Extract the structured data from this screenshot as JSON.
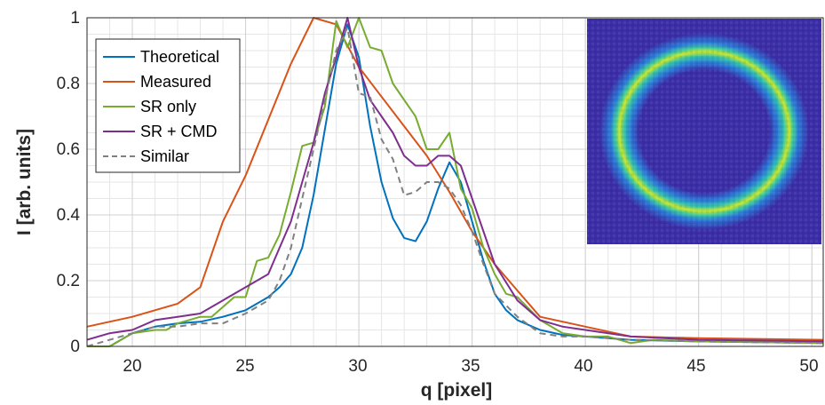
{
  "chart_data": {
    "type": "line",
    "xlabel": "q [pixel]",
    "ylabel": "I [arb. units]",
    "xlim": [
      18,
      50.5
    ],
    "ylim": [
      0,
      1
    ],
    "xticks": [
      "20",
      "25",
      "30",
      "35",
      "40",
      "45",
      "50"
    ],
    "yticks": [
      "0",
      "0.2",
      "0.4",
      "0.6",
      "0.8",
      "1"
    ],
    "grid": true,
    "minor_grid": true,
    "legend_position": "top-left",
    "series": [
      {
        "name": "Theoretical",
        "color": "#0072BD",
        "dash": "solid",
        "x": [
          18,
          19,
          20,
          21,
          22,
          23,
          24,
          25,
          25.5,
          26,
          26.5,
          27,
          27.5,
          28,
          28.5,
          29,
          29.5,
          30,
          30.5,
          31,
          31.5,
          32,
          32.5,
          33,
          33.5,
          34,
          34.5,
          35,
          35.5,
          36,
          36.5,
          37,
          38,
          39,
          40,
          42,
          45,
          50.5
        ],
        "y": [
          0.0,
          0.0,
          0.04,
          0.06,
          0.07,
          0.075,
          0.09,
          0.11,
          0.13,
          0.15,
          0.18,
          0.22,
          0.3,
          0.46,
          0.66,
          0.86,
          0.98,
          0.88,
          0.67,
          0.5,
          0.39,
          0.33,
          0.32,
          0.38,
          0.48,
          0.56,
          0.5,
          0.38,
          0.26,
          0.16,
          0.11,
          0.08,
          0.05,
          0.035,
          0.03,
          0.02,
          0.015,
          0.01
        ]
      },
      {
        "name": "Measured",
        "color": "#D95319",
        "dash": "solid",
        "x": [
          18,
          20,
          22,
          23,
          24,
          25,
          26,
          27,
          28,
          29,
          30,
          31,
          32,
          33,
          34,
          35,
          36,
          37,
          38,
          40,
          42,
          45,
          50.5
        ],
        "y": [
          0.06,
          0.09,
          0.13,
          0.18,
          0.38,
          0.52,
          0.69,
          0.86,
          1.0,
          0.98,
          0.85,
          0.76,
          0.67,
          0.58,
          0.47,
          0.35,
          0.25,
          0.17,
          0.09,
          0.06,
          0.03,
          0.025,
          0.02
        ]
      },
      {
        "name": "SR only",
        "color": "#77AC30",
        "dash": "solid",
        "x": [
          18,
          19,
          20,
          21,
          21.5,
          22,
          22.5,
          23,
          23.5,
          24,
          24.5,
          25,
          25.5,
          26,
          26.5,
          27,
          27.5,
          28,
          28.5,
          29,
          29.5,
          30,
          30.5,
          31,
          31.5,
          32,
          32.5,
          33,
          33.5,
          34,
          34.5,
          35,
          35.5,
          36,
          36.5,
          37,
          38,
          39,
          40,
          41,
          42,
          43,
          45,
          50.5
        ],
        "y": [
          0.0,
          0.0,
          0.04,
          0.05,
          0.05,
          0.07,
          0.08,
          0.09,
          0.09,
          0.12,
          0.15,
          0.15,
          0.26,
          0.27,
          0.34,
          0.47,
          0.61,
          0.62,
          0.73,
          0.99,
          0.91,
          1.0,
          0.91,
          0.9,
          0.8,
          0.75,
          0.7,
          0.6,
          0.6,
          0.65,
          0.48,
          0.42,
          0.3,
          0.22,
          0.16,
          0.15,
          0.08,
          0.04,
          0.03,
          0.03,
          0.01,
          0.02,
          0.015,
          0.01
        ]
      },
      {
        "name": "SR + CMD",
        "color": "#7E2F8E",
        "dash": "solid",
        "x": [
          18,
          19,
          20,
          21,
          22,
          23,
          24,
          25,
          26,
          26.5,
          27,
          27.5,
          28,
          28.5,
          29,
          29.5,
          30,
          30.5,
          31,
          31.5,
          32,
          32.5,
          33,
          33.5,
          34,
          34.5,
          35,
          35.5,
          36,
          37,
          38,
          39,
          40,
          42,
          45,
          50.5
        ],
        "y": [
          0.02,
          0.04,
          0.05,
          0.08,
          0.09,
          0.1,
          0.14,
          0.18,
          0.22,
          0.3,
          0.38,
          0.5,
          0.62,
          0.77,
          0.88,
          1.0,
          0.85,
          0.75,
          0.7,
          0.65,
          0.58,
          0.55,
          0.55,
          0.58,
          0.58,
          0.55,
          0.45,
          0.35,
          0.25,
          0.14,
          0.08,
          0.06,
          0.05,
          0.03,
          0.02,
          0.015
        ]
      },
      {
        "name": "Similar",
        "color": "#808080",
        "dash": "dashed",
        "x": [
          18,
          19,
          20,
          21,
          22,
          23,
          24,
          25,
          26,
          26.5,
          27,
          27.5,
          28,
          28.5,
          29,
          29.5,
          30,
          30.5,
          31,
          31.5,
          32,
          32.5,
          33,
          33.5,
          34,
          34.5,
          35,
          35.5,
          36,
          37,
          38,
          39,
          40,
          42,
          45,
          50.5
        ],
        "y": [
          0.0,
          0.02,
          0.04,
          0.06,
          0.06,
          0.07,
          0.07,
          0.1,
          0.14,
          0.2,
          0.3,
          0.45,
          0.6,
          0.75,
          0.9,
          0.97,
          0.77,
          0.76,
          0.63,
          0.57,
          0.46,
          0.47,
          0.5,
          0.5,
          0.48,
          0.43,
          0.35,
          0.25,
          0.16,
          0.09,
          0.04,
          0.03,
          0.03,
          0.02,
          0.015,
          0.01
        ]
      }
    ],
    "inset": {
      "type": "heatmap",
      "description_color_low": "#3a2aa8",
      "description_color_mid": "#21a9c9",
      "description_color_high": "#f5e620"
    }
  }
}
